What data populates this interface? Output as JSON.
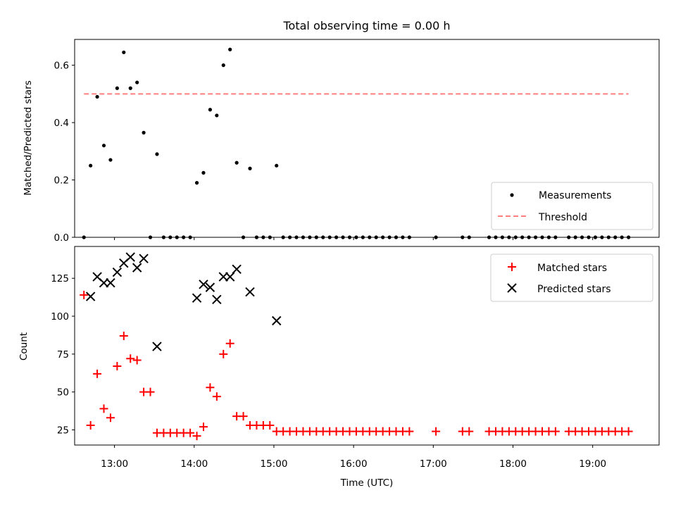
{
  "chart_data": [
    {
      "type": "scatter",
      "title": "Total observing time = 0.00 h",
      "xlabel": "",
      "ylabel": "Matched/Predicted stars",
      "x_axis": "time",
      "xlim": [
        "12:30",
        "19:50"
      ],
      "ylim": [
        0,
        0.69
      ],
      "yticks": [
        0.0,
        0.2,
        0.4,
        0.6
      ],
      "ytick_labels": [
        "0.0",
        "0.2",
        "0.4",
        "0.6"
      ],
      "legend": "lower-right",
      "colors": {
        "measurements": "#000000",
        "threshold": "#ff7f7f"
      },
      "series": [
        {
          "name": "Measurements",
          "x": [
            "12:37",
            "12:42",
            "12:47",
            "12:52",
            "12:57",
            "13:02",
            "13:07",
            "13:12",
            "13:17",
            "13:22",
            "13:27",
            "13:32",
            "13:37",
            "13:42",
            "13:47",
            "13:52",
            "13:57",
            "14:02",
            "14:07",
            "14:12",
            "14:17",
            "14:22",
            "14:27",
            "14:32",
            "14:37",
            "14:42",
            "14:47",
            "14:52",
            "14:57",
            "15:02",
            "15:07",
            "15:12",
            "15:17",
            "15:22",
            "15:27",
            "15:32",
            "15:37",
            "15:42",
            "15:47",
            "15:52",
            "15:57",
            "16:02",
            "16:07",
            "16:12",
            "16:17",
            "16:22",
            "16:27",
            "16:32",
            "16:37",
            "16:42",
            "17:02",
            "17:22",
            "17:27",
            "17:42",
            "17:47",
            "17:52",
            "17:57",
            "18:02",
            "18:07",
            "18:12",
            "18:17",
            "18:22",
            "18:27",
            "18:32",
            "18:42",
            "18:47",
            "18:52",
            "18:57",
            "19:02",
            "19:07",
            "19:12",
            "19:17",
            "19:22",
            "19:27"
          ],
          "y": [
            0.0,
            0.25,
            0.49,
            0.32,
            0.27,
            0.52,
            0.645,
            0.52,
            0.54,
            0.365,
            0.0,
            0.29,
            0.0,
            0.0,
            0.0,
            0.0,
            0.0,
            0.19,
            0.225,
            0.445,
            0.425,
            0.6,
            0.655,
            0.26,
            0.0,
            0.24,
            0.0,
            0.0,
            0.0,
            0.25,
            0.0,
            0.0,
            0.0,
            0.0,
            0.0,
            0.0,
            0.0,
            0.0,
            0.0,
            0.0,
            0.0,
            0.0,
            0.0,
            0.0,
            0.0,
            0.0,
            0.0,
            0.0,
            0.0,
            0.0,
            0.0,
            0.0,
            0.0,
            0.0,
            0.0,
            0.0,
            0.0,
            0.0,
            0.0,
            0.0,
            0.0,
            0.0,
            0.0,
            0.0,
            0.0,
            0.0,
            0.0,
            0.0,
            0.0,
            0.0,
            0.0,
            0.0,
            0.0,
            0.0
          ]
        },
        {
          "name": "Threshold",
          "x": [
            "12:37",
            "19:27"
          ],
          "y": [
            0.5,
            0.5
          ]
        }
      ]
    },
    {
      "type": "scatter",
      "title": "",
      "xlabel": "Time (UTC)",
      "ylabel": "Count",
      "x_axis": "time",
      "xlim": [
        "12:30",
        "19:50"
      ],
      "ylim": [
        15,
        146
      ],
      "yticks": [
        25,
        50,
        75,
        100,
        125
      ],
      "ytick_labels": [
        "25",
        "50",
        "75",
        "100",
        "125"
      ],
      "xticks": [
        "13:00",
        "14:00",
        "15:00",
        "16:00",
        "17:00",
        "18:00",
        "19:00"
      ],
      "xtick_labels": [
        "13:00",
        "14:00",
        "15:00",
        "16:00",
        "17:00",
        "18:00",
        "19:00"
      ],
      "legend": "top-right",
      "colors": {
        "matched": "#ff0000",
        "predicted": "#000000"
      },
      "series": [
        {
          "name": "Matched stars",
          "x": [
            "12:37",
            "12:42",
            "12:47",
            "12:52",
            "12:57",
            "13:02",
            "13:07",
            "13:12",
            "13:17",
            "13:22",
            "13:27",
            "13:32",
            "13:37",
            "13:42",
            "13:47",
            "13:52",
            "13:57",
            "14:02",
            "14:07",
            "14:12",
            "14:17",
            "14:22",
            "14:27",
            "14:32",
            "14:37",
            "14:42",
            "14:47",
            "14:52",
            "14:57",
            "15:02",
            "15:07",
            "15:12",
            "15:17",
            "15:22",
            "15:27",
            "15:32",
            "15:37",
            "15:42",
            "15:47",
            "15:52",
            "15:57",
            "16:02",
            "16:07",
            "16:12",
            "16:17",
            "16:22",
            "16:27",
            "16:32",
            "16:37",
            "16:42",
            "17:02",
            "17:22",
            "17:27",
            "17:42",
            "17:47",
            "17:52",
            "17:57",
            "18:02",
            "18:07",
            "18:12",
            "18:17",
            "18:22",
            "18:27",
            "18:32",
            "18:42",
            "18:47",
            "18:52",
            "18:57",
            "19:02",
            "19:07",
            "19:12",
            "19:17",
            "19:22",
            "19:27"
          ],
          "y": [
            114,
            28,
            62,
            39,
            33,
            67,
            87,
            72,
            71,
            50,
            50,
            23,
            23,
            23,
            23,
            23,
            23,
            21,
            27,
            53,
            47,
            75,
            82,
            34,
            34,
            28,
            28,
            28,
            28,
            24,
            24,
            24,
            24,
            24,
            24,
            24,
            24,
            24,
            24,
            24,
            24,
            24,
            24,
            24,
            24,
            24,
            24,
            24,
            24,
            24,
            24,
            24,
            24,
            24,
            24,
            24,
            24,
            24,
            24,
            24,
            24,
            24,
            24,
            24,
            24,
            24,
            24,
            24,
            24,
            24,
            24,
            24,
            24,
            24
          ]
        },
        {
          "name": "Predicted stars",
          "x": [
            "12:42",
            "12:47",
            "12:52",
            "12:57",
            "13:02",
            "13:07",
            "13:12",
            "13:17",
            "13:22",
            "13:32",
            "14:02",
            "14:07",
            "14:12",
            "14:17",
            "14:22",
            "14:27",
            "14:32",
            "14:42",
            "15:02"
          ],
          "y": [
            113,
            126,
            122,
            122,
            129,
            135,
            139,
            132,
            138,
            80,
            112,
            121,
            119,
            111,
            126,
            126,
            131,
            116,
            97
          ]
        }
      ]
    }
  ]
}
